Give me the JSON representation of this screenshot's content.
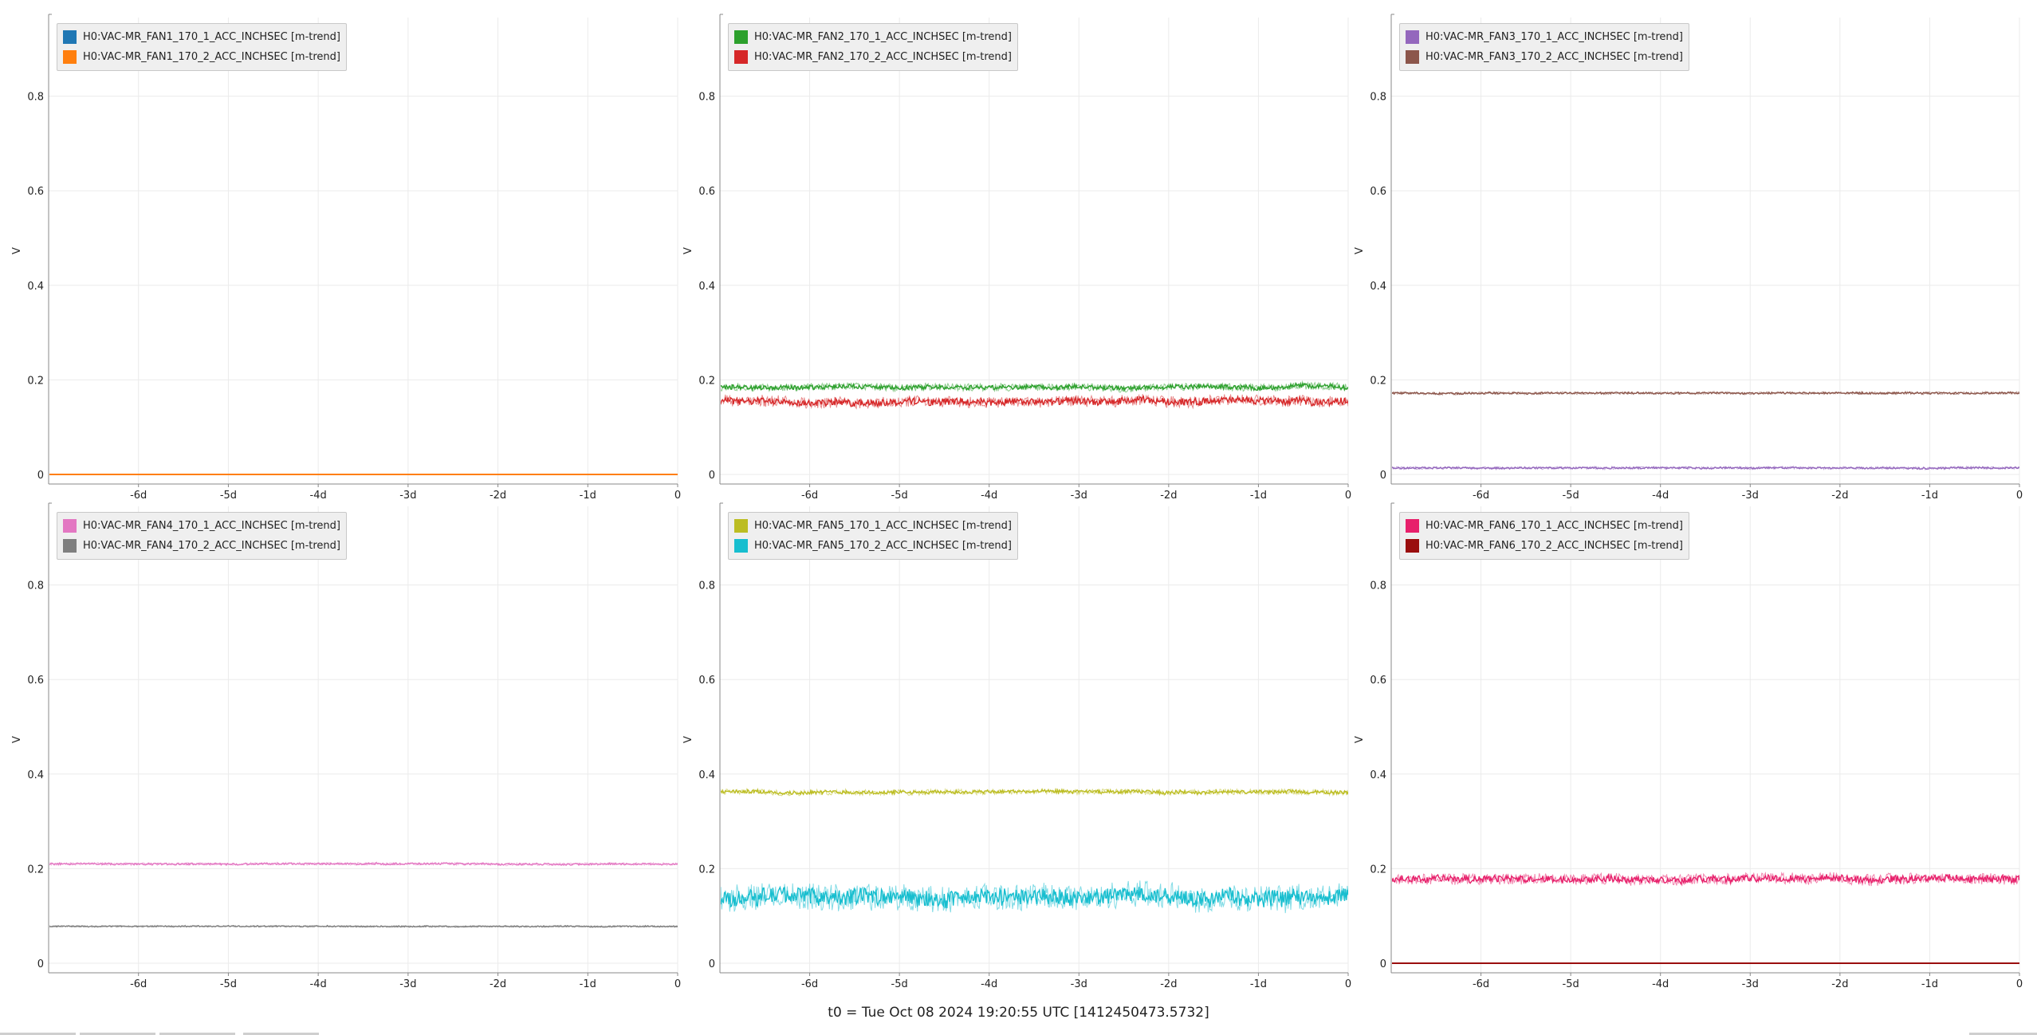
{
  "footer": {
    "t0_text": "t0 = Tue Oct 08 2024 19:20:55 UTC [1412450473.5732]"
  },
  "chart_data": [
    {
      "type": "line",
      "ylabel": "V",
      "xlabel": "",
      "xlim": [
        -7,
        0
      ],
      "ylim": [
        0,
        1
      ],
      "x_ticks": [
        "-6d",
        "-5d",
        "-4d",
        "-3d",
        "-2d",
        "-1d",
        "0"
      ],
      "y_ticks": [
        "0",
        "0.2",
        "0.4",
        "0.6",
        "0.8"
      ],
      "grid": true,
      "legend_position": "top-left",
      "series": [
        {
          "name": "H0:VAC-MR_FAN1_170_1_ACC_INCHSEC [m-trend]",
          "color": "#1f77b4",
          "level": 0.0,
          "noise": 0.0
        },
        {
          "name": "H0:VAC-MR_FAN1_170_2_ACC_INCHSEC [m-trend]",
          "color": "#ff7f0e",
          "level": 0.0,
          "noise": 0.0
        }
      ]
    },
    {
      "type": "line",
      "ylabel": "V",
      "xlabel": "",
      "xlim": [
        -7,
        0
      ],
      "ylim": [
        0,
        1
      ],
      "x_ticks": [
        "-6d",
        "-5d",
        "-4d",
        "-3d",
        "-2d",
        "-1d",
        "0"
      ],
      "y_ticks": [
        "0",
        "0.2",
        "0.4",
        "0.6",
        "0.8"
      ],
      "grid": true,
      "legend_position": "top-left",
      "series": [
        {
          "name": "H0:VAC-MR_FAN2_170_1_ACC_INCHSEC [m-trend]",
          "color": "#2ca02c",
          "level": 0.185,
          "noise": 0.008
        },
        {
          "name": "H0:VAC-MR_FAN2_170_2_ACC_INCHSEC [m-trend]",
          "color": "#d62728",
          "level": 0.155,
          "noise": 0.012
        }
      ]
    },
    {
      "type": "line",
      "ylabel": "V",
      "xlabel": "",
      "xlim": [
        -7,
        0
      ],
      "ylim": [
        0,
        1
      ],
      "x_ticks": [
        "-6d",
        "-5d",
        "-4d",
        "-3d",
        "-2d",
        "-1d",
        "0"
      ],
      "y_ticks": [
        "0",
        "0.2",
        "0.4",
        "0.6",
        "0.8"
      ],
      "grid": true,
      "legend_position": "top-left",
      "series": [
        {
          "name": "H0:VAC-MR_FAN3_170_1_ACC_INCHSEC [m-trend]",
          "color": "#9467bd",
          "level": 0.014,
          "noise": 0.003
        },
        {
          "name": "H0:VAC-MR_FAN3_170_2_ACC_INCHSEC [m-trend]",
          "color": "#8c564b",
          "level": 0.172,
          "noise": 0.003
        }
      ]
    },
    {
      "type": "line",
      "ylabel": "V",
      "xlabel": "",
      "xlim": [
        -7,
        0
      ],
      "ylim": [
        0,
        1
      ],
      "x_ticks": [
        "-6d",
        "-5d",
        "-4d",
        "-3d",
        "-2d",
        "-1d",
        "0"
      ],
      "y_ticks": [
        "0",
        "0.2",
        "0.4",
        "0.6",
        "0.8"
      ],
      "grid": true,
      "legend_position": "top-left",
      "series": [
        {
          "name": "H0:VAC-MR_FAN4_170_1_ACC_INCHSEC [m-trend]",
          "color": "#e377c2",
          "level": 0.21,
          "noise": 0.003
        },
        {
          "name": "H0:VAC-MR_FAN4_170_2_ACC_INCHSEC [m-trend]",
          "color": "#7f7f7f",
          "level": 0.078,
          "noise": 0.002
        }
      ]
    },
    {
      "type": "line",
      "ylabel": "V",
      "xlabel": "",
      "xlim": [
        -7,
        0
      ],
      "ylim": [
        0,
        1
      ],
      "x_ticks": [
        "-6d",
        "-5d",
        "-4d",
        "-3d",
        "-2d",
        "-1d",
        "0"
      ],
      "y_ticks": [
        "0",
        "0.2",
        "0.4",
        "0.6",
        "0.8"
      ],
      "grid": true,
      "legend_position": "top-left",
      "series": [
        {
          "name": "H0:VAC-MR_FAN5_170_1_ACC_INCHSEC [m-trend]",
          "color": "#bcbd22",
          "level": 0.362,
          "noise": 0.006
        },
        {
          "name": "H0:VAC-MR_FAN5_170_2_ACC_INCHSEC [m-trend]",
          "color": "#17becf",
          "level": 0.14,
          "noise": 0.028
        }
      ]
    },
    {
      "type": "line",
      "ylabel": "V",
      "xlabel": "",
      "xlim": [
        -7,
        0
      ],
      "ylim": [
        0,
        1
      ],
      "x_ticks": [
        "-6d",
        "-5d",
        "-4d",
        "-3d",
        "-2d",
        "-1d",
        "0"
      ],
      "y_ticks": [
        "0",
        "0.2",
        "0.4",
        "0.6",
        "0.8"
      ],
      "grid": true,
      "legend_position": "top-left",
      "series": [
        {
          "name": "H0:VAC-MR_FAN6_170_1_ACC_INCHSEC [m-trend]",
          "color": "#e7206b",
          "level": 0.178,
          "noise": 0.012
        },
        {
          "name": "H0:VAC-MR_FAN6_170_2_ACC_INCHSEC [m-trend]",
          "color": "#9a0e0e",
          "level": 0.0,
          "noise": 0.0
        }
      ]
    }
  ]
}
